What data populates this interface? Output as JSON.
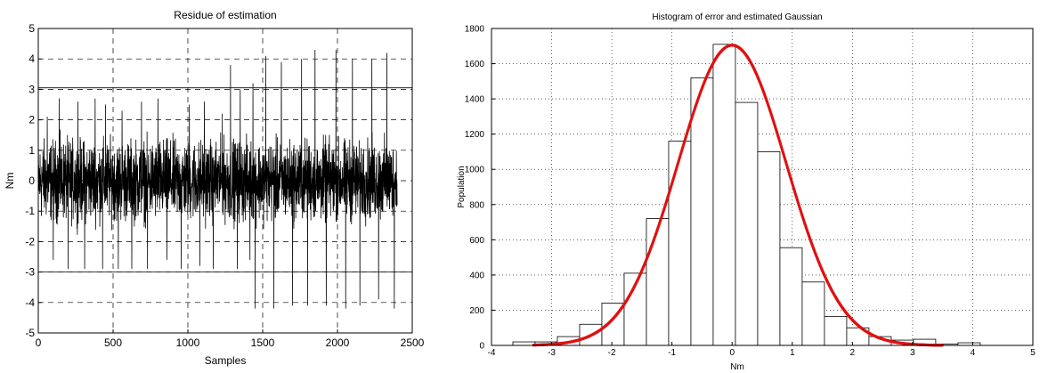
{
  "chart_data": [
    {
      "type": "line",
      "title": "Residue of estimation",
      "xlabel": "Samples",
      "ylabel": "Nm",
      "xlim": [
        0,
        2500
      ],
      "ylim": [
        -5,
        5
      ],
      "xticks": [
        0,
        500,
        1000,
        1500,
        2000,
        2500
      ],
      "yticks": [
        -5,
        -4,
        -3,
        -2,
        -1,
        0,
        1,
        2,
        3,
        4,
        5
      ],
      "grid": true,
      "color": "#000000",
      "n_samples": 2400,
      "band_pct90": [
        -1.0,
        1.0
      ],
      "threshold_lines": [
        3.05,
        -3.0
      ],
      "spikes": [
        {
          "x": 60,
          "y": 2.1
        },
        {
          "x": 100,
          "y": -2.6
        },
        {
          "x": 140,
          "y": 2.7
        },
        {
          "x": 200,
          "y": -2.9
        },
        {
          "x": 265,
          "y": 2.6
        },
        {
          "x": 310,
          "y": -2.9
        },
        {
          "x": 380,
          "y": 2.7
        },
        {
          "x": 430,
          "y": -2.9
        },
        {
          "x": 450,
          "y": 2.5
        },
        {
          "x": 535,
          "y": -2.9
        },
        {
          "x": 560,
          "y": 2.3
        },
        {
          "x": 625,
          "y": -2.9
        },
        {
          "x": 690,
          "y": 2.6
        },
        {
          "x": 730,
          "y": -2.9
        },
        {
          "x": 800,
          "y": 2.7
        },
        {
          "x": 860,
          "y": -2.6
        },
        {
          "x": 955,
          "y": -2.9
        },
        {
          "x": 1010,
          "y": 2.5
        },
        {
          "x": 1080,
          "y": -2.8
        },
        {
          "x": 1110,
          "y": 2.6
        },
        {
          "x": 1170,
          "y": -2.9
        },
        {
          "x": 1230,
          "y": 2.2
        },
        {
          "x": 1285,
          "y": 3.8
        },
        {
          "x": 1330,
          "y": -2.9
        },
        {
          "x": 1350,
          "y": 3.0
        },
        {
          "x": 1415,
          "y": -2.6
        },
        {
          "x": 1435,
          "y": 3.2
        },
        {
          "x": 1450,
          "y": -4.2
        },
        {
          "x": 1520,
          "y": 4.1
        },
        {
          "x": 1575,
          "y": -4.2
        },
        {
          "x": 1625,
          "y": 3.9
        },
        {
          "x": 1700,
          "y": -4.1
        },
        {
          "x": 1760,
          "y": 4.0
        },
        {
          "x": 1800,
          "y": -4.1
        },
        {
          "x": 1850,
          "y": 4.3
        },
        {
          "x": 1925,
          "y": -4.1
        },
        {
          "x": 1990,
          "y": 4.3
        },
        {
          "x": 2055,
          "y": -4.2
        },
        {
          "x": 2100,
          "y": 4.0
        },
        {
          "x": 2150,
          "y": -4.1
        },
        {
          "x": 2230,
          "y": 4.0
        },
        {
          "x": 2275,
          "y": -3.9
        },
        {
          "x": 2330,
          "y": 4.2
        },
        {
          "x": 2380,
          "y": -4.2
        },
        {
          "x": 2410,
          "y": 4.3
        }
      ]
    },
    {
      "type": "bar",
      "title": "Histogram of error and estimated Gaussian",
      "xlabel": "Nm",
      "ylabel": "Population",
      "xlim": [
        -4,
        5
      ],
      "ylim": [
        0,
        1800
      ],
      "xticks": [
        -4,
        -3,
        -2,
        -1,
        0,
        1,
        2,
        3,
        4,
        5
      ],
      "yticks": [
        0,
        200,
        400,
        600,
        800,
        1000,
        1200,
        1400,
        1600,
        1800
      ],
      "grid": true,
      "bar_color": "#ffffff",
      "bar_edge_color": "#000000",
      "bin_width": 0.37,
      "bins": [
        {
          "x": -3.46,
          "value": 20
        },
        {
          "x": -3.09,
          "value": 20
        },
        {
          "x": -2.72,
          "value": 50
        },
        {
          "x": -2.35,
          "value": 120
        },
        {
          "x": -1.98,
          "value": 240
        },
        {
          "x": -1.61,
          "value": 410
        },
        {
          "x": -1.24,
          "value": 720
        },
        {
          "x": -0.87,
          "value": 1160
        },
        {
          "x": -0.5,
          "value": 1520
        },
        {
          "x": -0.13,
          "value": 1710
        },
        {
          "x": 0.24,
          "value": 1380
        },
        {
          "x": 0.61,
          "value": 1100
        },
        {
          "x": 0.98,
          "value": 555
        },
        {
          "x": 1.35,
          "value": 360
        },
        {
          "x": 1.72,
          "value": 165
        },
        {
          "x": 2.09,
          "value": 100
        },
        {
          "x": 2.46,
          "value": 50
        },
        {
          "x": 2.83,
          "value": 30
        },
        {
          "x": 3.2,
          "value": 35
        },
        {
          "x": 3.57,
          "value": 8
        },
        {
          "x": 3.94,
          "value": 15
        }
      ],
      "gaussian_curve": {
        "color": "#e01010",
        "amplitude": 1705,
        "mean": 0.0,
        "sigma": 0.9,
        "range": [
          -3.3,
          3.5
        ]
      }
    }
  ]
}
